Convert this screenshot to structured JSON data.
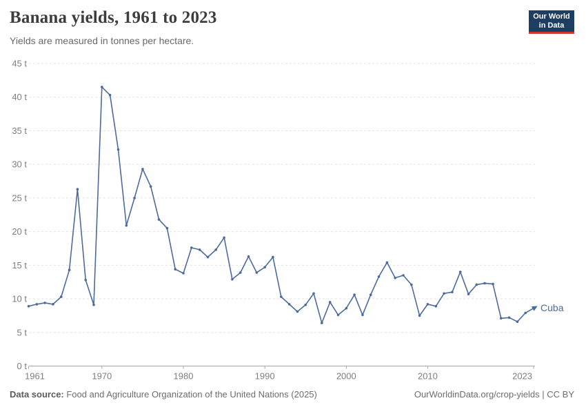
{
  "header": {
    "title": "Banana yields, 1961 to 2023",
    "subtitle": "Yields are measured in tonnes per hectare.",
    "logo": {
      "line1": "Our World",
      "line2": "in Data"
    }
  },
  "chart_data": {
    "type": "line",
    "title": "Banana yields, 1961 to 2023",
    "ylabel": "tonnes per hectare",
    "xlabel": "",
    "unit": "t",
    "ylim": [
      0,
      45
    ],
    "xlim": [
      1961,
      2023
    ],
    "grid": "dashed-horizontal",
    "legend_position": "end-of-line-label",
    "yticks": [
      0,
      5,
      10,
      15,
      20,
      25,
      30,
      35,
      40,
      45
    ],
    "ytick_labels": [
      "0 t",
      "5 t",
      "10 t",
      "15 t",
      "20 t",
      "25 t",
      "30 t",
      "35 t",
      "40 t",
      "45 t"
    ],
    "xticks": [
      1961,
      1970,
      1980,
      1990,
      2000,
      2010,
      2023
    ],
    "xtick_labels": [
      "1961",
      "1970",
      "1980",
      "1990",
      "2000",
      "2010",
      "2023"
    ],
    "series": [
      {
        "name": "Cuba",
        "color": "#4c6a9c",
        "x": [
          1961,
          1962,
          1963,
          1964,
          1965,
          1966,
          1967,
          1968,
          1969,
          1970,
          1971,
          1972,
          1973,
          1974,
          1975,
          1976,
          1977,
          1978,
          1979,
          1980,
          1981,
          1982,
          1983,
          1984,
          1985,
          1986,
          1987,
          1988,
          1989,
          1990,
          1991,
          1992,
          1993,
          1994,
          1995,
          1996,
          1997,
          1998,
          1999,
          2000,
          2001,
          2002,
          2003,
          2004,
          2005,
          2006,
          2007,
          2008,
          2009,
          2010,
          2011,
          2012,
          2013,
          2014,
          2015,
          2016,
          2017,
          2018,
          2019,
          2020,
          2021,
          2022,
          2023
        ],
        "values": [
          8.9,
          9.2,
          9.4,
          9.2,
          10.3,
          14.3,
          26.3,
          12.8,
          9.1,
          41.5,
          40.3,
          32.2,
          20.9,
          25.0,
          29.3,
          26.7,
          21.8,
          20.5,
          14.4,
          13.8,
          17.6,
          17.3,
          16.2,
          17.3,
          19.1,
          12.9,
          13.9,
          16.3,
          13.9,
          14.7,
          16.2,
          10.3,
          9.2,
          8.1,
          9.1,
          10.8,
          6.4,
          9.5,
          7.6,
          8.6,
          10.6,
          7.6,
          10.6,
          13.3,
          15.4,
          13.1,
          13.5,
          12.1,
          7.5,
          9.2,
          8.9,
          10.8,
          11.0,
          14.0,
          10.7,
          12.1,
          12.3,
          12.2,
          7.1,
          7.2,
          6.6,
          7.9,
          8.6
        ]
      }
    ]
  },
  "colors": {
    "line": "#4c6a9c",
    "grid": "#e3e3e3",
    "axis": "#a5a5a5",
    "tick_label": "#7e7e7e",
    "logo_bg": "#1d3d63",
    "logo_accent": "#d0342c"
  },
  "footer": {
    "source_label": "Data source:",
    "source_text": " Food and Agriculture Organization of the United Nations (2025)",
    "credit": "OurWorldinData.org/crop-yields | CC BY"
  }
}
